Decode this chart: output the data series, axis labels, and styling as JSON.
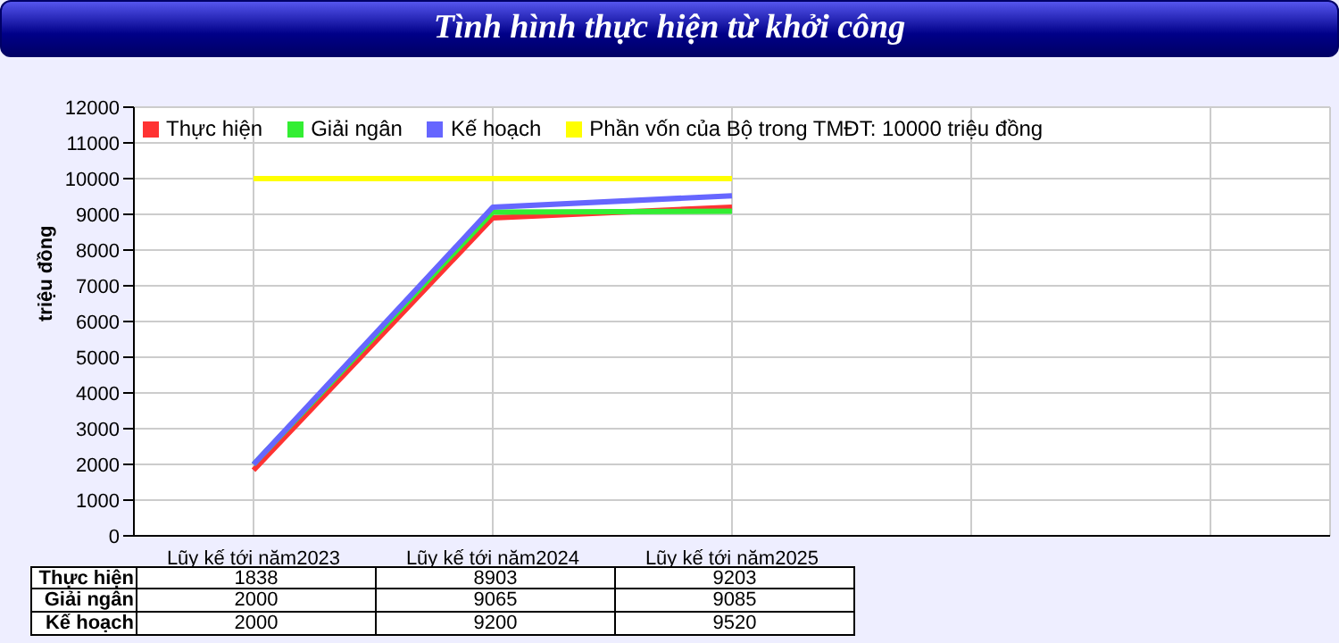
{
  "chart_data": {
    "type": "line",
    "title": "Tình hình thực hiện từ khởi công",
    "ylabel": "triệu đồng",
    "categories": [
      "Lũy kế tới năm2023",
      "Lũy kế tới năm2024",
      "Lũy kế tới năm2025",
      null,
      null
    ],
    "series": [
      {
        "name": "Thực hiện",
        "color": "#ff3333",
        "values": [
          1838,
          8903,
          9203,
          null,
          null
        ],
        "value_labels": [
          "1838",
          "8903",
          "9203",
          null,
          null
        ]
      },
      {
        "name": "Giải ngân",
        "color": "#33ee33",
        "values": [
          2000,
          9065,
          9085,
          null,
          null
        ],
        "value_labels": [
          "2000",
          "9065",
          "9085",
          null,
          null
        ]
      },
      {
        "name": "Kế hoạch",
        "color": "#6666ff",
        "values": [
          2000,
          9200,
          9520,
          null,
          null
        ],
        "value_labels": [
          "2000",
          "9200",
          "9520",
          null,
          null
        ]
      },
      {
        "name": "Phần vốn của Bộ trong TMĐT: 10000 triệu đồng",
        "color": "#ffff00",
        "values": [
          10000,
          10000,
          10000,
          null,
          null
        ]
      }
    ],
    "ylim": [
      0,
      12000
    ],
    "yticks": [
      0,
      1000,
      2000,
      3000,
      4000,
      5000,
      6000,
      7000,
      8000,
      9000,
      10000,
      11000,
      12000
    ],
    "grid": true,
    "legend": "top left",
    "marker": "none",
    "line_style": "solid"
  }
}
